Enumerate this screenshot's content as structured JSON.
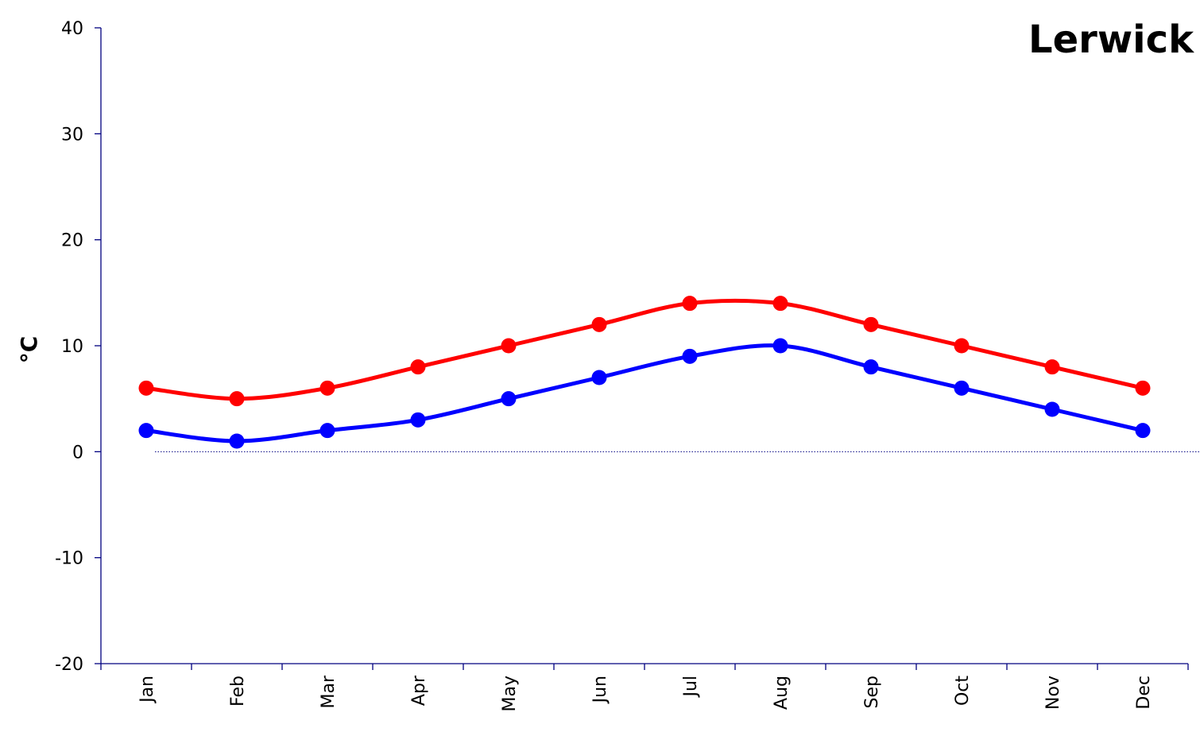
{
  "chart_data": {
    "type": "line",
    "title": "Lerwick",
    "xlabel": "",
    "ylabel": "°C",
    "categories": [
      "Jan",
      "Feb",
      "Mar",
      "Apr",
      "May",
      "Jun",
      "Jul",
      "Aug",
      "Sep",
      "Oct",
      "Nov",
      "Dec"
    ],
    "ylim": [
      -20,
      40
    ],
    "yticks": [
      40,
      30,
      20,
      10,
      0,
      -10,
      -20
    ],
    "grid": false,
    "legend": "none",
    "zero_line": true,
    "series": [
      {
        "color": "#ff0000",
        "values": [
          6,
          5,
          6,
          8,
          10,
          12,
          14,
          14,
          12,
          10,
          8,
          6
        ]
      },
      {
        "color": "#0000ff",
        "values": [
          2,
          1,
          2,
          3,
          5,
          7,
          9,
          10,
          8,
          6,
          4,
          2
        ]
      }
    ]
  }
}
